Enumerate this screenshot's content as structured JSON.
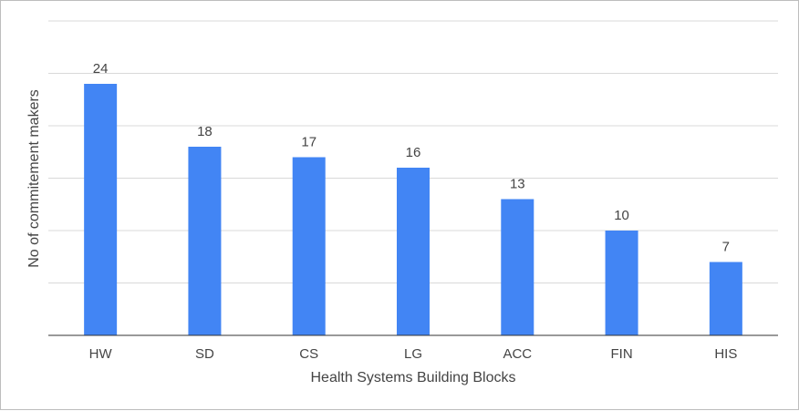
{
  "chart_data": {
    "type": "bar",
    "title": "",
    "xlabel": "Health Systems Building Blocks",
    "ylabel": "No of commitement makers",
    "categories": [
      "HW",
      "SD",
      "CS",
      "LG",
      "ACC",
      "FIN",
      "HIS"
    ],
    "values": [
      24,
      18,
      17,
      16,
      13,
      10,
      7
    ],
    "ylim": [
      0,
      30
    ],
    "gridlines": [
      0,
      5,
      10,
      15,
      20,
      25,
      30
    ],
    "grid": true,
    "y_tick_labels_visible": false,
    "data_labels": true,
    "legend": "none",
    "colors": {
      "bar": "#4285f4",
      "grid": "#d9d9d9",
      "axis": "#333333",
      "text": "#444444"
    }
  }
}
